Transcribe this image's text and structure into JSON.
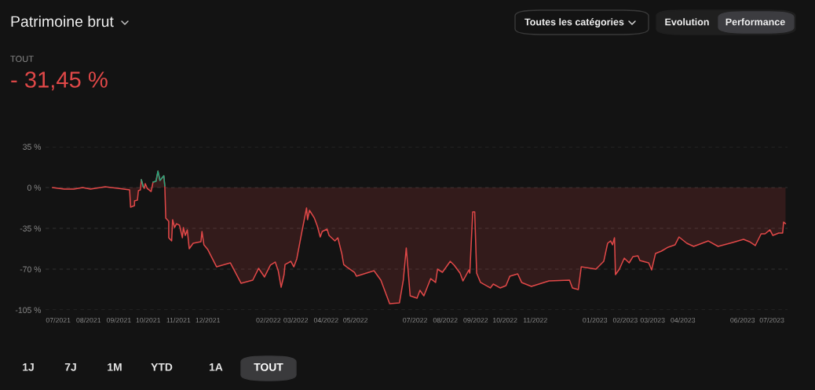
{
  "chart_data": {
    "type": "area",
    "title": "Patrimoine brut",
    "annotations": [
      "TOUT",
      "- 31,45 %",
      "Toutes les catégories",
      "Evolution",
      "Performance",
      "1J",
      "7J",
      "1M",
      "YTD",
      "1A",
      "TOUT"
    ],
    "series": [
      {
        "color": "#e04848",
        "x": [
          "2021-06-25",
          "2021-07-07",
          "2021-07-17",
          "2021-07-26",
          "2021-08-03",
          "2021-08-18",
          "2021-08-31",
          "2021-09-12",
          "2021-09-13",
          "2021-09-17",
          "2021-09-17",
          "2021-09-20",
          "2021-09-21",
          "2021-09-23",
          "2021-09-24",
          "2021-09-26",
          "2021-09-27",
          "2021-09-28",
          "2021-09-30",
          "2021-10-04",
          "2021-10-06",
          "2021-10-09",
          "2021-10-11",
          "2021-10-13",
          "2021-10-17",
          "2021-10-18",
          "2021-10-19",
          "2021-10-22",
          "2021-10-22",
          "2021-10-25",
          "2021-10-26",
          "2021-10-28",
          "2021-10-30",
          "2021-11-02",
          "2021-11-05",
          "2021-11-06",
          "2021-11-08",
          "2021-11-10",
          "2021-11-12",
          "2021-11-16",
          "2021-11-24",
          "2021-11-25",
          "2021-11-27",
          "2021-12-01",
          "2021-12-10",
          "2021-12-24",
          "2022-01-04",
          "2022-01-16",
          "2022-01-22",
          "2022-01-28",
          "2022-02-03",
          "2022-02-08",
          "2022-02-11",
          "2022-02-14",
          "2022-02-17",
          "2022-02-18",
          "2022-02-24",
          "2022-02-27",
          "2022-03-02",
          "2022-03-07",
          "2022-03-12",
          "2022-03-13",
          "2022-03-15",
          "2022-03-20",
          "2022-03-23",
          "2022-03-26",
          "2022-03-28",
          "2022-04-02",
          "2022-04-04",
          "2022-04-10",
          "2022-04-13",
          "2022-04-17",
          "2022-04-19",
          "2022-04-22",
          "2022-04-30",
          "2022-05-02",
          "2022-05-20",
          "2022-05-27",
          "2022-06-05",
          "2022-06-15",
          "2022-06-19",
          "2022-06-22",
          "2022-06-26",
          "2022-07-03",
          "2022-07-06",
          "2022-07-10",
          "2022-07-17",
          "2022-07-22",
          "2022-07-24",
          "2022-07-29",
          "2022-08-06",
          "2022-08-10",
          "2022-08-16",
          "2022-08-19",
          "2022-08-25",
          "2022-08-26",
          "2022-08-29",
          "2022-08-31",
          "2022-09-02",
          "2022-09-06",
          "2022-09-16",
          "2022-09-19",
          "2022-09-26",
          "2022-10-02",
          "2022-10-06",
          "2022-10-14",
          "2022-10-18",
          "2022-10-28",
          "2022-11-15",
          "2022-12-06",
          "2022-12-09",
          "2022-12-15",
          "2022-12-18",
          "2023-01-02",
          "2023-01-10",
          "2023-01-14",
          "2023-01-17",
          "2023-01-19",
          "2023-01-21",
          "2023-01-22",
          "2023-01-26",
          "2023-01-31",
          "2023-02-05",
          "2023-02-09",
          "2023-02-14",
          "2023-02-16",
          "2023-02-25",
          "2023-02-28",
          "2023-03-04",
          "2023-03-10",
          "2023-03-17",
          "2023-03-24",
          "2023-03-28",
          "2023-04-05",
          "2023-04-12",
          "2023-04-27",
          "2023-05-07",
          "2023-05-22",
          "2023-06-02",
          "2023-06-08",
          "2023-06-14",
          "2023-06-20",
          "2023-06-24",
          "2023-06-29",
          "2023-07-02",
          "2023-07-08",
          "2023-07-12",
          "2023-07-13",
          "2023-07-15"
        ],
        "values": [
          0,
          -1.3,
          -1.3,
          0,
          -1.3,
          0.7,
          -0.7,
          -2.0,
          -16.8,
          -15.5,
          -11.4,
          -10.8,
          -2.7,
          -2.0,
          6.7,
          0.7,
          -0.7,
          3.4,
          -0.7,
          -3.4,
          4.7,
          5.4,
          14.1,
          6.1,
          10.1,
          1.3,
          -26.2,
          -28.9,
          -43.1,
          -45.8,
          -27.6,
          -34.3,
          -31.0,
          -32.3,
          -43.1,
          -34.3,
          -41.1,
          -36.3,
          -52.5,
          -47.8,
          -46.4,
          -37.7,
          -49.1,
          -53.2,
          -68.0,
          -64.6,
          -82.1,
          -79.4,
          -69.3,
          -76.7,
          -66.6,
          -63.9,
          -71.3,
          -85.5,
          -74.7,
          -66.0,
          -63.3,
          -68.0,
          -61.2,
          -39.0,
          -17.5,
          -27.6,
          -19.5,
          -26.2,
          -33.0,
          -42.4,
          -37.7,
          -35.7,
          -41.1,
          -45.8,
          -43.1,
          -56.5,
          -66.0,
          -68.0,
          -72.7,
          -76.0,
          -71.3,
          -79.4,
          -99.6,
          -98.9,
          -79.4,
          -51.8,
          -92.9,
          -94.9,
          -88.2,
          -92.9,
          -78.1,
          -81.4,
          -70.0,
          -72.7,
          -63.3,
          -66.6,
          -73.4,
          -80.1,
          -70.7,
          -73.4,
          -20.9,
          -20.9,
          -73.4,
          -81.4,
          -86.1,
          -82.8,
          -86.1,
          -84.1,
          -76.0,
          -74.0,
          -81.4,
          -84.8,
          -80.1,
          -79.4,
          -86.1,
          -87.5,
          -68.0,
          -70.0,
          -63.3,
          -47.8,
          -45.8,
          -49.1,
          -43.1,
          -74.7,
          -70.0,
          -60.6,
          -64.6,
          -59.2,
          -58.6,
          -62.6,
          -64.6,
          -70.7,
          -56.5,
          -54.5,
          -51.1,
          -49.1,
          -42.4,
          -47.8,
          -50.5,
          -45.8,
          -50.5,
          -47.1,
          -44.4,
          -46.4,
          -49.8,
          -39.7,
          -39.7,
          -36.3,
          -41.1,
          -39.0,
          -39.0,
          -29.6,
          -31.0
        ]
      },
      {
        "type": "line",
        "color": "#22a57c",
        "x": [
          "2021-09-24",
          "2021-09-26",
          "2021-09-28",
          "2021-10-06",
          "2021-10-09",
          "2021-10-11",
          "2021-10-13",
          "2021-10-17",
          "2021-10-18"
        ],
        "values": [
          6.7,
          0.7,
          null,
          4.7,
          5.4,
          14.1,
          6.1,
          10.1,
          1.3
        ]
      }
    ],
    "xlim": [
      "2021-06-18",
      "2023-07-17"
    ],
    "xticks": [
      {
        "value": "2021-07-01",
        "label": "07/2021"
      },
      {
        "value": "2021-08-01",
        "label": "08/2021"
      },
      {
        "value": "2021-09-01",
        "label": "09/2021"
      },
      {
        "value": "2021-10-01",
        "label": "10/2021"
      },
      {
        "value": "2021-11-01",
        "label": "11/2021"
      },
      {
        "value": "2021-12-01",
        "label": "12/2021"
      },
      {
        "value": "2022-02-01",
        "label": "02/2022"
      },
      {
        "value": "2022-03-01",
        "label": "03/2022"
      },
      {
        "value": "2022-04-01",
        "label": "04/2022"
      },
      {
        "value": "2022-05-01",
        "label": "05/2022"
      },
      {
        "value": "2022-07-01",
        "label": "07/2022"
      },
      {
        "value": "2022-08-01",
        "label": "08/2022"
      },
      {
        "value": "2022-09-01",
        "label": "09/2022"
      },
      {
        "value": "2022-10-01",
        "label": "10/2022"
      },
      {
        "value": "2022-11-01",
        "label": "11/2022"
      },
      {
        "value": "2023-01-01",
        "label": "01/2023"
      },
      {
        "value": "2023-02-01",
        "label": "02/2023"
      },
      {
        "value": "2023-03-01",
        "label": "03/2023"
      },
      {
        "value": "2023-04-01",
        "label": "04/2023"
      },
      {
        "value": "2023-06-01",
        "label": "06/2023"
      },
      {
        "value": "2023-07-01",
        "label": "07/2023"
      }
    ],
    "ylim": [
      -105,
      35
    ],
    "yticks": [
      {
        "value": 35,
        "label": "35 %"
      },
      {
        "value": 0,
        "label": "0 %"
      },
      {
        "value": -35,
        "label": "-35 %"
      },
      {
        "value": -70,
        "label": "-70 %"
      },
      {
        "value": -105,
        "label": "-105 %"
      }
    ],
    "grid": "y"
  }
}
